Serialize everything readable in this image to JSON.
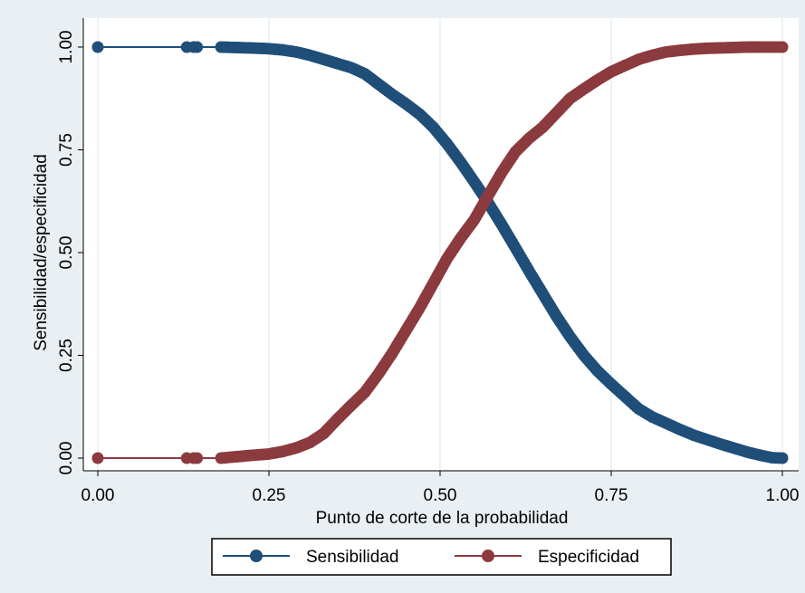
{
  "chart_data": {
    "type": "line",
    "title": "",
    "xlabel": "Punto de corte de la probabilidad",
    "ylabel": "Sensibilidad/especificidad",
    "xlim": [
      0,
      1
    ],
    "ylim": [
      0,
      1
    ],
    "x_ticks": [
      "0.00",
      "0.25",
      "0.50",
      "0.75",
      "1.00"
    ],
    "y_ticks": [
      "0.00",
      "0.25",
      "0.50",
      "0.75",
      "1.00"
    ],
    "grid": true,
    "legend_position": "bottom",
    "background_color": "#e9eff3",
    "plot_background_color": "#ffffff",
    "series": [
      {
        "name": "Sensibilidad",
        "color": "#1f4e79",
        "marker": "circle",
        "points": [
          [
            0.0,
            1.0
          ],
          [
            0.13,
            1.0
          ],
          [
            0.14,
            1.0
          ],
          [
            0.145,
            1.0
          ],
          [
            0.18,
            1.0
          ],
          [
            0.2,
            0.999
          ],
          [
            0.22,
            0.998
          ],
          [
            0.25,
            0.996
          ],
          [
            0.27,
            0.993
          ],
          [
            0.29,
            0.988
          ],
          [
            0.31,
            0.98
          ],
          [
            0.33,
            0.97
          ],
          [
            0.35,
            0.96
          ],
          [
            0.37,
            0.95
          ],
          [
            0.39,
            0.935
          ],
          [
            0.41,
            0.91
          ],
          [
            0.43,
            0.885
          ],
          [
            0.45,
            0.862
          ],
          [
            0.47,
            0.837
          ],
          [
            0.49,
            0.805
          ],
          [
            0.51,
            0.765
          ],
          [
            0.53,
            0.72
          ],
          [
            0.55,
            0.672
          ],
          [
            0.57,
            0.622
          ],
          [
            0.59,
            0.568
          ],
          [
            0.61,
            0.512
          ],
          [
            0.63,
            0.455
          ],
          [
            0.65,
            0.4
          ],
          [
            0.67,
            0.345
          ],
          [
            0.69,
            0.295
          ],
          [
            0.71,
            0.25
          ],
          [
            0.73,
            0.212
          ],
          [
            0.75,
            0.18
          ],
          [
            0.77,
            0.15
          ],
          [
            0.79,
            0.12
          ],
          [
            0.81,
            0.1
          ],
          [
            0.83,
            0.085
          ],
          [
            0.85,
            0.07
          ],
          [
            0.87,
            0.056
          ],
          [
            0.89,
            0.045
          ],
          [
            0.91,
            0.034
          ],
          [
            0.93,
            0.024
          ],
          [
            0.95,
            0.014
          ],
          [
            0.97,
            0.006
          ],
          [
            0.985,
            0.001
          ],
          [
            1.0,
            0.0
          ]
        ]
      },
      {
        "name": "Especificidad",
        "color": "#8b3a3e",
        "marker": "circle",
        "points": [
          [
            0.0,
            0.0
          ],
          [
            0.13,
            0.0
          ],
          [
            0.14,
            0.0
          ],
          [
            0.145,
            0.0
          ],
          [
            0.18,
            0.0
          ],
          [
            0.2,
            0.003
          ],
          [
            0.22,
            0.006
          ],
          [
            0.25,
            0.01
          ],
          [
            0.27,
            0.016
          ],
          [
            0.29,
            0.025
          ],
          [
            0.31,
            0.038
          ],
          [
            0.33,
            0.06
          ],
          [
            0.35,
            0.095
          ],
          [
            0.37,
            0.128
          ],
          [
            0.39,
            0.16
          ],
          [
            0.41,
            0.205
          ],
          [
            0.43,
            0.255
          ],
          [
            0.45,
            0.31
          ],
          [
            0.47,
            0.365
          ],
          [
            0.49,
            0.425
          ],
          [
            0.51,
            0.485
          ],
          [
            0.53,
            0.535
          ],
          [
            0.55,
            0.58
          ],
          [
            0.57,
            0.638
          ],
          [
            0.59,
            0.695
          ],
          [
            0.61,
            0.745
          ],
          [
            0.63,
            0.778
          ],
          [
            0.65,
            0.805
          ],
          [
            0.67,
            0.84
          ],
          [
            0.69,
            0.875
          ],
          [
            0.71,
            0.898
          ],
          [
            0.73,
            0.92
          ],
          [
            0.75,
            0.94
          ],
          [
            0.77,
            0.955
          ],
          [
            0.79,
            0.97
          ],
          [
            0.81,
            0.98
          ],
          [
            0.83,
            0.988
          ],
          [
            0.85,
            0.992
          ],
          [
            0.87,
            0.995
          ],
          [
            0.89,
            0.997
          ],
          [
            0.91,
            0.998
          ],
          [
            0.93,
            0.999
          ],
          [
            0.95,
            1.0
          ],
          [
            0.97,
            1.0
          ],
          [
            0.985,
            1.0
          ],
          [
            1.0,
            1.0
          ]
        ]
      }
    ]
  }
}
